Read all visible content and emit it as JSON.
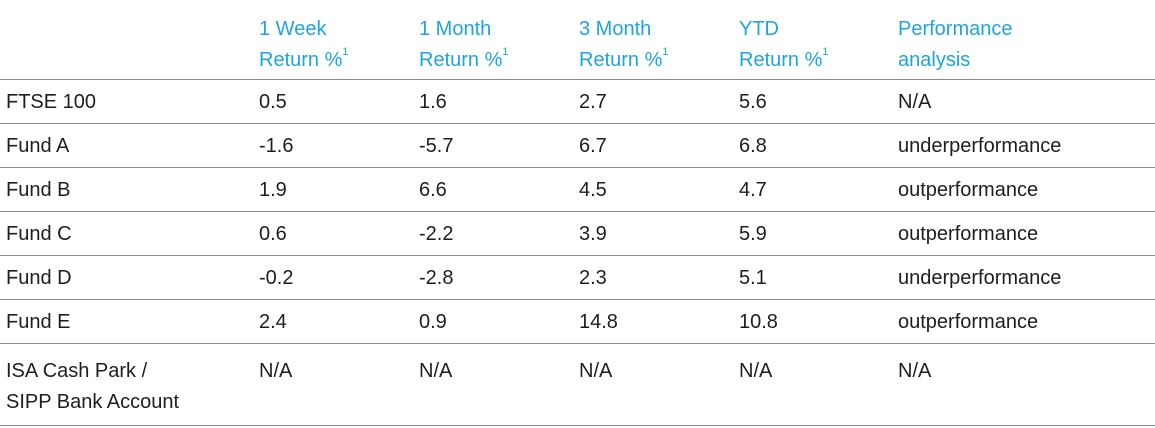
{
  "table": {
    "headers": [
      {
        "line1": "",
        "line2": "",
        "sup": ""
      },
      {
        "line1": "1 Week",
        "line2": "Return %",
        "sup": "1"
      },
      {
        "line1": "1 Month",
        "line2": "Return %",
        "sup": "1"
      },
      {
        "line1": "3 Month",
        "line2": "Return %",
        "sup": "1"
      },
      {
        "line1": "YTD",
        "line2": "Return %",
        "sup": "1"
      },
      {
        "line1": "Performance",
        "line2": "analysis",
        "sup": ""
      }
    ],
    "rows": [
      {
        "name": "FTSE 100",
        "w1": "0.5",
        "m1": "1.6",
        "m3": "2.7",
        "ytd": "5.6",
        "analysis": "N/A"
      },
      {
        "name": "Fund A",
        "w1": "-1.6",
        "m1": "-5.7",
        "m3": "6.7",
        "ytd": "6.8",
        "analysis": "underperformance"
      },
      {
        "name": "Fund B",
        "w1": "1.9",
        "m1": "6.6",
        "m3": "4.5",
        "ytd": "4.7",
        "analysis": "outperformance"
      },
      {
        "name": "Fund C",
        "w1": "0.6",
        "m1": "-2.2",
        "m3": "3.9",
        "ytd": "5.9",
        "analysis": "outperformance"
      },
      {
        "name": "Fund D",
        "w1": "-0.2",
        "m1": "-2.8",
        "m3": "2.3",
        "ytd": "5.1",
        "analysis": "underperformance"
      },
      {
        "name": "Fund E",
        "w1": "2.4",
        "m1": "0.9",
        "m3": "14.8",
        "ytd": "10.8",
        "analysis": "outperformance"
      }
    ],
    "last_row": {
      "name_line1": "ISA Cash Park /",
      "name_line2": "SIPP Bank Account",
      "w1": "N/A",
      "m1": "N/A",
      "m3": "N/A",
      "ytd": "N/A",
      "analysis": "N/A"
    }
  },
  "colors": {
    "header_text": "#1ea5e0",
    "body_text": "#1e1e1e",
    "divider": "#8a8a8a"
  }
}
